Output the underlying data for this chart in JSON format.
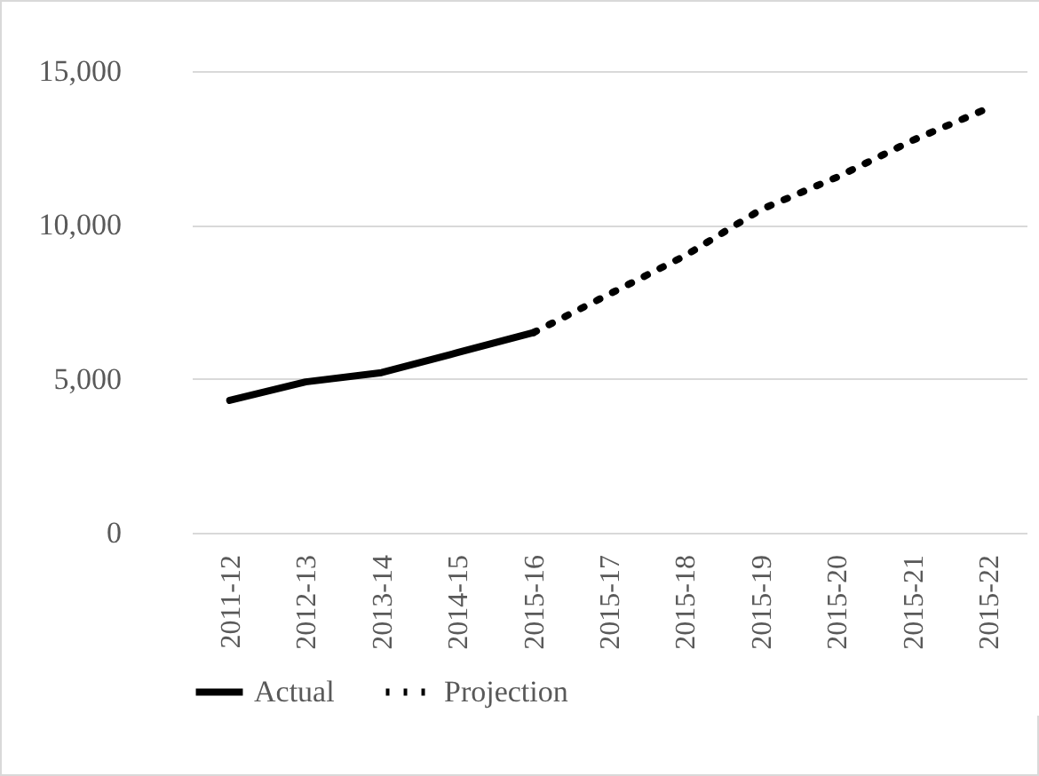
{
  "chart_data": {
    "type": "line",
    "categories": [
      "2011-12",
      "2012-13",
      "2013-14",
      "2014-15",
      "2015-16",
      "2015-17",
      "2015-18",
      "2015-19",
      "2015-20",
      "2015-21",
      "2015-22"
    ],
    "series": [
      {
        "name": "Actual",
        "color": "#000000",
        "line_style": "solid",
        "values": [
          4300,
          4900,
          5200,
          5850,
          6500,
          null,
          null,
          null,
          null,
          null,
          null
        ]
      },
      {
        "name": "Projection",
        "color": "#000000",
        "line_style": "dotted",
        "values": [
          null,
          null,
          null,
          null,
          6500,
          7750,
          9000,
          10500,
          11550,
          12750,
          13800
        ]
      }
    ],
    "ylim": [
      0,
      15000
    ],
    "yticks": [
      0,
      {
        "value": 5000,
        "label": "5,000"
      },
      {
        "value": 10000,
        "label": "10,000"
      },
      {
        "value": 15000,
        "label": "15,000"
      }
    ],
    "grid": "y",
    "legend": "bottom"
  }
}
